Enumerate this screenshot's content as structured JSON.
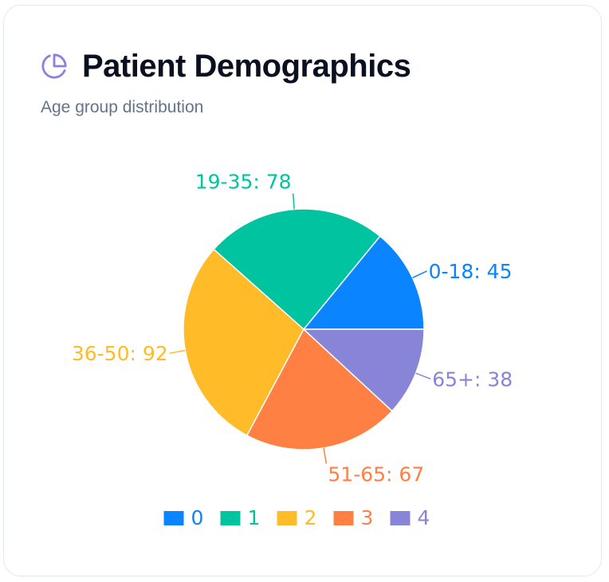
{
  "header": {
    "icon": "pie-chart-icon",
    "title": "Patient Demographics",
    "subtitle": "Age group distribution",
    "accent_color": "#8b7fe0"
  },
  "chart_data": {
    "type": "pie",
    "slices": [
      {
        "label": "0-18",
        "value": 45,
        "color": "#0a84ff"
      },
      {
        "label": "19-35",
        "value": 78,
        "color": "#00c49f"
      },
      {
        "label": "36-50",
        "value": 92,
        "color": "#ffbb28"
      },
      {
        "label": "51-65",
        "value": 67,
        "color": "#ff8042"
      },
      {
        "label": "65+",
        "value": 38,
        "color": "#8884d8"
      }
    ],
    "legend": {
      "placement": "bottom",
      "entries": [
        "0",
        "1",
        "2",
        "3",
        "4"
      ]
    },
    "start_angle_deg": 0,
    "direction": "counterclockwise"
  }
}
